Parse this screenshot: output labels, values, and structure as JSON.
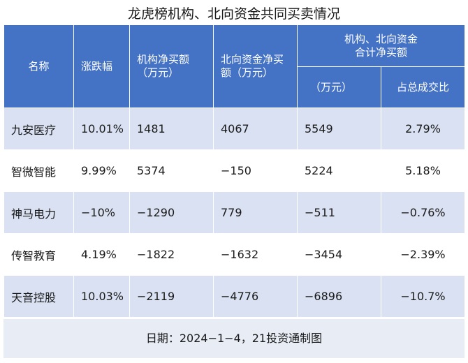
{
  "title": "龙虎榜机构、北向资金共同买卖情况",
  "header": {
    "name": "名称",
    "change": "涨跌幅",
    "inst_net_line1": "机构净买额",
    "inst_net_line2": "（万元）",
    "north_net_line1": "北向资金净买",
    "north_net_line2": "额（万元）",
    "combined_line1": "机构、北向资金",
    "combined_line2": "合计净买额",
    "combined_unit": "（万元）",
    "share": "占总成交比"
  },
  "rows": [
    {
      "name": "九安医疗",
      "change": "10.01%",
      "inst": "1481",
      "north": "4067",
      "total": "5549",
      "share": "2.79%"
    },
    {
      "name": "智微智能",
      "change": "9.99%",
      "inst": "5374",
      "north": "−150",
      "total": "5224",
      "share": "5.18%"
    },
    {
      "name": "神马电力",
      "change": "−10%",
      "inst": "−1290",
      "north": "779",
      "total": "−511",
      "share": "−0.76%"
    },
    {
      "name": "传智教育",
      "change": "4.19%",
      "inst": "−1822",
      "north": "−1632",
      "total": "−3454",
      "share": "−2.39%"
    },
    {
      "name": "天音控股",
      "change": "10.03%",
      "inst": "−2119",
      "north": "−4776",
      "total": "−6896",
      "share": "−10.7%"
    }
  ],
  "footer": "日期：2024−1−4，21投资通制图"
}
